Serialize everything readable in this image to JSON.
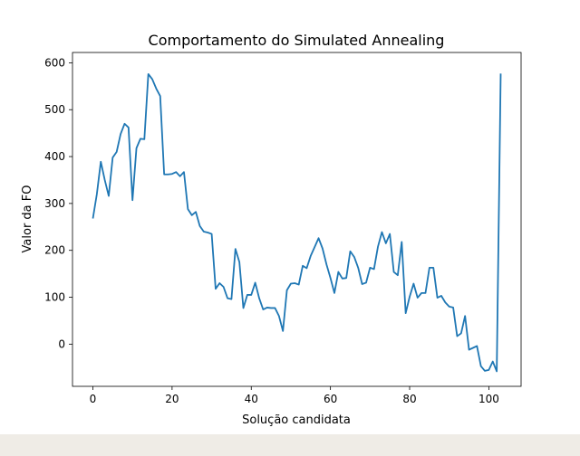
{
  "chart_data": {
    "type": "line",
    "title": "Comportamento do Simulated Annealing",
    "xlabel": "Solução candidata",
    "ylabel": "Valor da FO",
    "xlim": [
      -5.15,
      108.15
    ],
    "ylim": [
      -90,
      622
    ],
    "xticks": [
      0,
      20,
      40,
      60,
      80,
      100
    ],
    "yticks": [
      0,
      100,
      200,
      300,
      400,
      500,
      600
    ],
    "grid": false,
    "series": [
      {
        "color": "#1f77b4",
        "x": [
          0,
          1,
          2,
          3,
          4,
          5,
          6,
          7,
          8,
          9,
          10,
          11,
          12,
          13,
          14,
          15,
          16,
          17,
          18,
          19,
          20,
          21,
          22,
          23,
          24,
          25,
          26,
          27,
          28,
          29,
          30,
          31,
          32,
          33,
          34,
          35,
          36,
          37,
          38,
          39,
          40,
          41,
          42,
          43,
          44,
          45,
          46,
          47,
          48,
          49,
          50,
          51,
          52,
          53,
          54,
          55,
          56,
          57,
          58,
          59,
          60,
          61,
          62,
          63,
          64,
          65,
          66,
          67,
          68,
          69,
          70,
          71,
          72,
          73,
          74,
          75,
          76,
          77,
          78,
          79,
          80,
          81,
          82,
          83,
          84,
          85,
          86,
          87,
          88,
          89,
          90,
          91,
          92,
          93,
          94,
          95,
          96,
          97,
          98,
          99,
          100,
          101,
          102,
          103
        ],
        "values": [
          268,
          320,
          389,
          350,
          316,
          398,
          410,
          448,
          470,
          462,
          307,
          418,
          438,
          437,
          576,
          565,
          545,
          529,
          362,
          362,
          363,
          367,
          358,
          367,
          288,
          275,
          282,
          252,
          240,
          238,
          235,
          118,
          130,
          122,
          98,
          96,
          203,
          175,
          77,
          105,
          105,
          131,
          98,
          74,
          78,
          77,
          77,
          60,
          28,
          115,
          129,
          130,
          127,
          167,
          162,
          188,
          207,
          226,
          204,
          170,
          141,
          109,
          154,
          140,
          141,
          198,
          186,
          163,
          128,
          131,
          163,
          160,
          208,
          239,
          215,
          235,
          154,
          147,
          218,
          66,
          101,
          129,
          99,
          109,
          109,
          163,
          163,
          99,
          103,
          89,
          80,
          78,
          17,
          23,
          60,
          -12,
          -8,
          -4,
          -47,
          -57,
          -55,
          -37,
          -58,
          577
        ]
      }
    ]
  }
}
